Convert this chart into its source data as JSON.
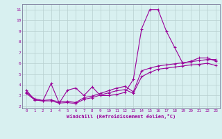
{
  "xlabel": "Windchill (Refroidissement éolien,°C)",
  "background_color": "#d8f0f0",
  "grid_color": "#b8d0d0",
  "line_color": "#990099",
  "spine_color": "#7a7a9a",
  "xlim": [
    -0.5,
    23.5
  ],
  "ylim": [
    1.8,
    11.5
  ],
  "xticks": [
    0,
    1,
    2,
    3,
    4,
    5,
    6,
    7,
    8,
    9,
    10,
    11,
    12,
    13,
    14,
    15,
    16,
    17,
    18,
    19,
    20,
    21,
    22,
    23
  ],
  "yticks": [
    2,
    3,
    4,
    5,
    6,
    7,
    8,
    9,
    10,
    11
  ],
  "line1_x": [
    0,
    1,
    2,
    3,
    4,
    5,
    6,
    7,
    8,
    9,
    10,
    11,
    12,
    13,
    14,
    15,
    16,
    17,
    18,
    19,
    20,
    21,
    22,
    23
  ],
  "line1_y": [
    3.5,
    2.6,
    2.5,
    4.1,
    2.3,
    3.5,
    3.7,
    3.0,
    3.8,
    3.0,
    3.0,
    3.1,
    3.3,
    4.5,
    9.2,
    11.0,
    11.0,
    9.0,
    7.5,
    6.0,
    6.2,
    6.5,
    6.5,
    6.2
  ],
  "line2_x": [
    0,
    1,
    2,
    3,
    4,
    5,
    6,
    7,
    8,
    9,
    10,
    11,
    12,
    13,
    14,
    15,
    16,
    17,
    18,
    19,
    20,
    21,
    22,
    23
  ],
  "line2_y": [
    3.3,
    2.7,
    2.55,
    2.6,
    2.4,
    2.45,
    2.35,
    2.8,
    2.95,
    3.2,
    3.45,
    3.7,
    3.85,
    3.35,
    5.3,
    5.55,
    5.75,
    5.85,
    5.95,
    6.05,
    6.15,
    6.25,
    6.35,
    6.35
  ],
  "line3_x": [
    0,
    1,
    2,
    3,
    4,
    5,
    6,
    7,
    8,
    9,
    10,
    11,
    12,
    13,
    14,
    15,
    16,
    17,
    18,
    19,
    20,
    21,
    22,
    23
  ],
  "line3_y": [
    3.2,
    2.6,
    2.5,
    2.5,
    2.3,
    2.35,
    2.25,
    2.65,
    2.8,
    3.05,
    3.25,
    3.45,
    3.55,
    3.2,
    4.75,
    5.15,
    5.45,
    5.55,
    5.65,
    5.75,
    5.85,
    5.9,
    6.0,
    5.8
  ]
}
